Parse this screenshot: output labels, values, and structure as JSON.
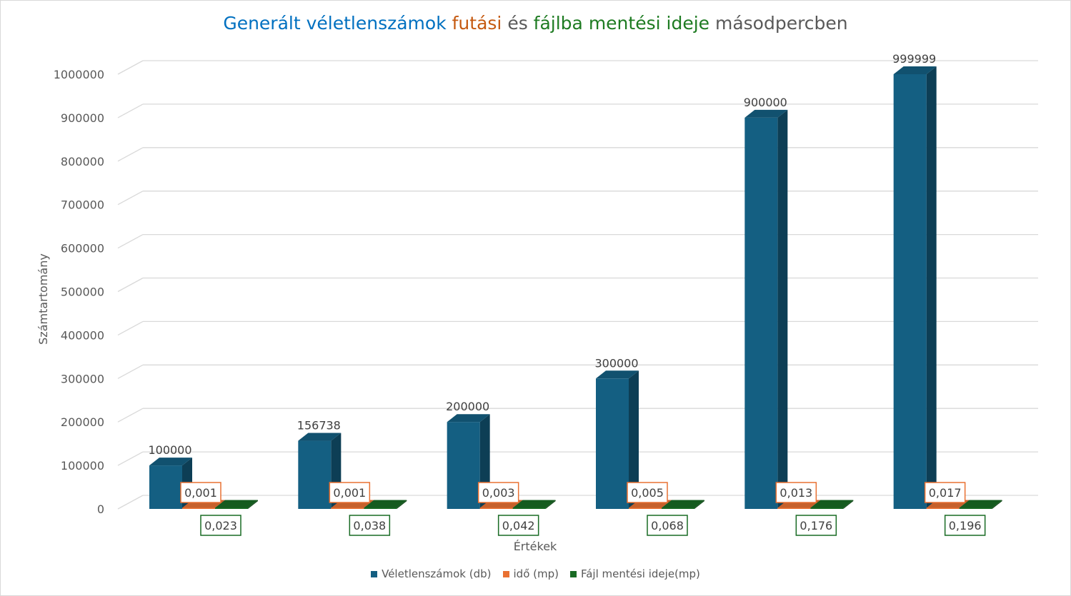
{
  "title_parts": [
    {
      "text": "Generált véletlenszámok ",
      "color": "#0070C0"
    },
    {
      "text": "futási ",
      "color": "#C55A11"
    },
    {
      "text": "és ",
      "color": "#595959"
    },
    {
      "text": "fájlba mentési ideje ",
      "color": "#1E7B22"
    },
    {
      "text": "másodpercben",
      "color": "#595959"
    }
  ],
  "chart_data": {
    "type": "bar",
    "title": "Generált véletlenszámok futási és fájlba mentési ideje másodpercben",
    "xlabel": "Értékek",
    "ylabel": "Számtartomány",
    "ylim": [
      0,
      1000000
    ],
    "ytick_step": 100000,
    "yticks": [
      "0",
      "100000",
      "200000",
      "300000",
      "400000",
      "500000",
      "600000",
      "700000",
      "800000",
      "900000",
      "1000000"
    ],
    "categories": [
      "",
      "",
      "",
      "",
      "",
      ""
    ],
    "grid": true,
    "legend_position": "bottom",
    "series": [
      {
        "name": "Véletlenszámok (db)",
        "color": "#145F82",
        "values": [
          100000,
          156738,
          200000,
          300000,
          900000,
          999999
        ],
        "labels": [
          "100000",
          "156738",
          "200000",
          "300000",
          "900000",
          "999999"
        ]
      },
      {
        "name": "idő (mp)",
        "color": "#E97132",
        "values": [
          0.001,
          0.001,
          0.003,
          0.005,
          0.013,
          0.017
        ],
        "labels": [
          "0,001",
          "0,001",
          "0,003",
          "0,005",
          "0,013",
          "0,017"
        ]
      },
      {
        "name": "Fájl mentési ideje(mp)",
        "color": "#196B24",
        "values": [
          0.023,
          0.038,
          0.042,
          0.068,
          0.176,
          0.196
        ],
        "labels": [
          "0,023",
          "0,038",
          "0,042",
          "0,068",
          "0,176",
          "0,196"
        ]
      }
    ]
  }
}
